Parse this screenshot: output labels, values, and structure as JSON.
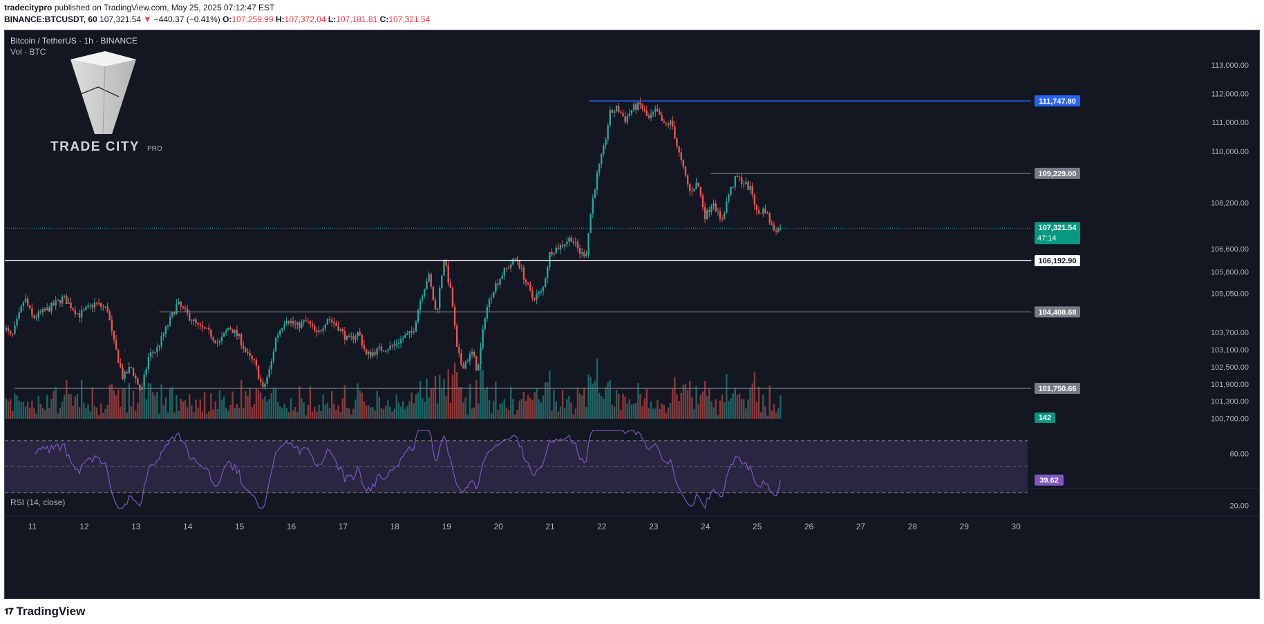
{
  "header": {
    "author": "tradecitypro",
    "published_text": "published on TradingView.com, May 25, 2025 07:12:47 EST",
    "symbol_line": "BINANCE:BTCUSDT, 60",
    "last_price": "107,321.54",
    "change": "−440.37 (−0.41%)",
    "o_label": "O:",
    "o_value": "107,259.99",
    "h_label": "H:",
    "h_value": "107,372.04",
    "l_label": "L:",
    "l_value": "107,181.81",
    "c_label": "C:",
    "c_value": "107,321.54"
  },
  "chart": {
    "legend_title": "Bitcoin / TetherUS · 1h · BINANCE",
    "legend_vol": "Vol · BTC",
    "watermark_text": "TRADE CITY",
    "watermark_sub": "PRO",
    "rsi_label": "RSI (14, close)"
  },
  "footer": {
    "brand": "TradingView",
    "logo_icon": "tradingview-logo-icon"
  },
  "colors": {
    "bg": "#131722",
    "up": "#26a69a",
    "down": "#ef5350",
    "grid_text": "#b2b5be",
    "rsi_line": "#7e57c2",
    "rsi_band": "#2a2540",
    "blue_line": "#2962ff",
    "level_line": "#787b86"
  },
  "chart_data": {
    "type": "candlestick",
    "price_axis": {
      "ticks": [
        "113,000.00",
        "112,000.00",
        "111,000.00",
        "110,000.00",
        "108,200.00",
        "106,600.00",
        "105,800.00",
        "105,050.00",
        "103,700.00",
        "103,100.00",
        "102,500.00",
        "101,900.00",
        "101,300.00",
        "100,700.00"
      ],
      "ylim": [
        100500,
        113600
      ]
    },
    "time_axis": {
      "ticks": [
        "11",
        "12",
        "13",
        "14",
        "15",
        "16",
        "17",
        "18",
        "19",
        "20",
        "21",
        "22",
        "23",
        "24",
        "25",
        "26",
        "27",
        "28",
        "29",
        "30"
      ]
    },
    "levels": [
      {
        "value": 111747.8,
        "label": "111,747.80",
        "style": "blue",
        "start_day": 21.75
      },
      {
        "value": 109229.0,
        "label": "109,229.00",
        "style": "gray",
        "start_day": 24.1
      },
      {
        "value": 106192.9,
        "label": "106,192.90",
        "style": "white",
        "start_day": 10.45
      },
      {
        "value": 104408.68,
        "label": "104,408.68",
        "style": "gray",
        "start_day": 13.45
      },
      {
        "value": 101750.66,
        "label": "101,750.66",
        "style": "gray",
        "start_day": 10.65
      }
    ],
    "current": {
      "value": 107321.54,
      "label": "107,321.54",
      "countdown": "47:14"
    },
    "volume_label": "142",
    "rsi": {
      "ticks": [
        "60.00",
        "20.00"
      ],
      "upper": 70,
      "mid": 50,
      "lower": 30,
      "current": "39.62",
      "ylim": [
        16,
        80
      ],
      "current_value": 39.62
    },
    "key_points": [
      [
        10.45,
        103900
      ],
      [
        10.6,
        103500
      ],
      [
        10.85,
        104900
      ],
      [
        11.0,
        104200
      ],
      [
        11.3,
        104500
      ],
      [
        11.6,
        104900
      ],
      [
        11.9,
        104300
      ],
      [
        12.2,
        104700
      ],
      [
        12.45,
        104500
      ],
      [
        12.55,
        103500
      ],
      [
        12.75,
        102100
      ],
      [
        12.9,
        102500
      ],
      [
        13.1,
        101600
      ],
      [
        13.25,
        102900
      ],
      [
        13.4,
        103100
      ],
      [
        13.6,
        103900
      ],
      [
        13.8,
        104700
      ],
      [
        14.0,
        104300
      ],
      [
        14.2,
        103900
      ],
      [
        14.4,
        103700
      ],
      [
        14.6,
        103300
      ],
      [
        14.8,
        103900
      ],
      [
        15.0,
        103500
      ],
      [
        15.15,
        102900
      ],
      [
        15.3,
        102600
      ],
      [
        15.45,
        101700
      ],
      [
        15.6,
        102500
      ],
      [
        15.7,
        103500
      ],
      [
        15.9,
        104200
      ],
      [
        16.1,
        103900
      ],
      [
        16.3,
        104100
      ],
      [
        16.5,
        103600
      ],
      [
        16.7,
        104200
      ],
      [
        16.9,
        103900
      ],
      [
        17.1,
        103400
      ],
      [
        17.3,
        103700
      ],
      [
        17.45,
        102900
      ],
      [
        17.7,
        103100
      ],
      [
        17.95,
        103200
      ],
      [
        18.15,
        103500
      ],
      [
        18.35,
        103700
      ],
      [
        18.5,
        104900
      ],
      [
        18.65,
        105700
      ],
      [
        18.8,
        104300
      ],
      [
        18.95,
        106300
      ],
      [
        19.1,
        104900
      ],
      [
        19.2,
        103100
      ],
      [
        19.3,
        102500
      ],
      [
        19.5,
        103000
      ],
      [
        19.6,
        102300
      ],
      [
        19.75,
        104400
      ],
      [
        19.9,
        105200
      ],
      [
        20.1,
        105800
      ],
      [
        20.35,
        106300
      ],
      [
        20.5,
        105600
      ],
      [
        20.65,
        104900
      ],
      [
        20.85,
        105100
      ],
      [
        21.0,
        106500
      ],
      [
        21.2,
        106700
      ],
      [
        21.4,
        107000
      ],
      [
        21.6,
        106400
      ],
      [
        21.7,
        106500
      ],
      [
        21.8,
        108100
      ],
      [
        21.9,
        109100
      ],
      [
        22.05,
        110200
      ],
      [
        22.15,
        111300
      ],
      [
        22.3,
        111500
      ],
      [
        22.45,
        111100
      ],
      [
        22.6,
        111500
      ],
      [
        22.75,
        111600
      ],
      [
        22.9,
        111100
      ],
      [
        23.05,
        111400
      ],
      [
        23.2,
        110900
      ],
      [
        23.35,
        111000
      ],
      [
        23.45,
        110200
      ],
      [
        23.55,
        109500
      ],
      [
        23.7,
        108600
      ],
      [
        23.85,
        108900
      ],
      [
        24.0,
        107700
      ],
      [
        24.15,
        108300
      ],
      [
        24.3,
        107500
      ],
      [
        24.45,
        108500
      ],
      [
        24.6,
        109100
      ],
      [
        24.75,
        108900
      ],
      [
        24.9,
        108600
      ],
      [
        25.0,
        107800
      ],
      [
        25.15,
        108000
      ],
      [
        25.3,
        107300
      ],
      [
        25.45,
        107321.54
      ]
    ]
  }
}
